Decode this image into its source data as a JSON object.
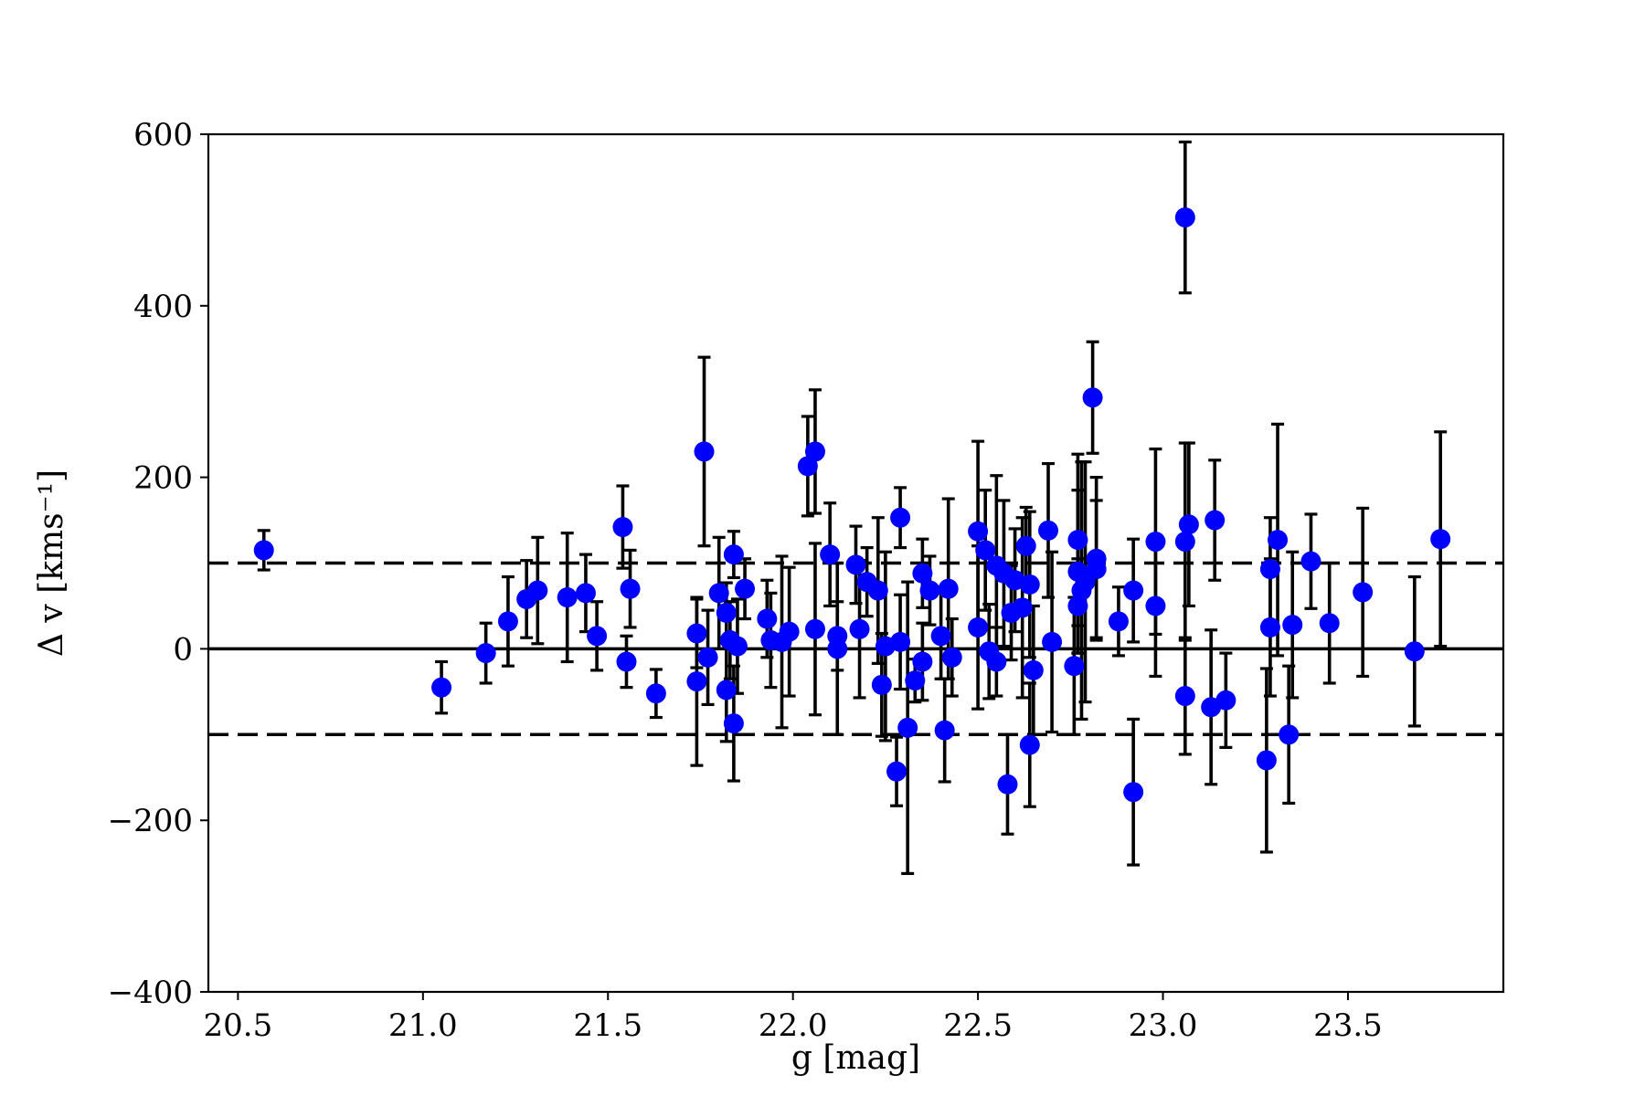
{
  "chart_data": {
    "type": "scatter",
    "title": "",
    "xlabel": "g [mag]",
    "ylabel": "Δ v [kms⁻¹]",
    "xlim": [
      20.42,
      23.92
    ],
    "ylim": [
      -400,
      600
    ],
    "xticks": [
      "20.5",
      "21.0",
      "21.5",
      "22.0",
      "22.5",
      "23.0",
      "23.5"
    ],
    "xtick_values": [
      20.5,
      21.0,
      21.5,
      22.0,
      22.5,
      23.0,
      23.5
    ],
    "yticks": [
      "600",
      "400",
      "200",
      "0",
      "−200",
      "−400"
    ],
    "ytick_values": [
      600,
      400,
      200,
      0,
      -200,
      -400
    ],
    "grid": false,
    "reference_lines": [
      {
        "y": 0,
        "style": "solid"
      },
      {
        "y": 100,
        "style": "dashed"
      },
      {
        "y": -100,
        "style": "dashed"
      }
    ],
    "marker_color": "#0000ff",
    "errorbar_color": "#000000",
    "points": [
      {
        "x": 20.57,
        "y": 115,
        "err": 23
      },
      {
        "x": 21.05,
        "y": -45,
        "err": 30
      },
      {
        "x": 21.17,
        "y": -5,
        "err": 35
      },
      {
        "x": 21.23,
        "y": 32,
        "err": 52
      },
      {
        "x": 21.28,
        "y": 58,
        "err": 45
      },
      {
        "x": 21.31,
        "y": 68,
        "err": 62
      },
      {
        "x": 21.39,
        "y": 60,
        "err": 75
      },
      {
        "x": 21.44,
        "y": 65,
        "err": 45
      },
      {
        "x": 21.47,
        "y": 15,
        "err": 40
      },
      {
        "x": 21.54,
        "y": 142,
        "err": 48
      },
      {
        "x": 21.55,
        "y": -15,
        "err": 30
      },
      {
        "x": 21.56,
        "y": 70,
        "err": 45
      },
      {
        "x": 21.63,
        "y": -52,
        "err": 28
      },
      {
        "x": 21.74,
        "y": 18,
        "err": 40
      },
      {
        "x": 21.74,
        "y": -38,
        "err": 98
      },
      {
        "x": 21.76,
        "y": 230,
        "err": 110
      },
      {
        "x": 21.77,
        "y": -10,
        "err": 55
      },
      {
        "x": 21.8,
        "y": 65,
        "err": 65
      },
      {
        "x": 21.82,
        "y": -48,
        "err": 60
      },
      {
        "x": 21.82,
        "y": 42,
        "err": 35
      },
      {
        "x": 21.83,
        "y": 10,
        "err": 45
      },
      {
        "x": 21.84,
        "y": 110,
        "err": 27
      },
      {
        "x": 21.84,
        "y": -87,
        "err": 67
      },
      {
        "x": 21.85,
        "y": 3,
        "err": 55
      },
      {
        "x": 21.87,
        "y": 70,
        "err": 35
      },
      {
        "x": 21.93,
        "y": 35,
        "err": 45
      },
      {
        "x": 21.94,
        "y": 10,
        "err": 55
      },
      {
        "x": 21.97,
        "y": 8,
        "err": 100
      },
      {
        "x": 21.99,
        "y": 20,
        "err": 75
      },
      {
        "x": 22.04,
        "y": 213,
        "err": 58
      },
      {
        "x": 22.06,
        "y": 230,
        "err": 72
      },
      {
        "x": 22.06,
        "y": 23,
        "err": 100
      },
      {
        "x": 22.1,
        "y": 110,
        "err": 60
      },
      {
        "x": 22.12,
        "y": 15,
        "err": 40
      },
      {
        "x": 22.12,
        "y": 0,
        "err": 100
      },
      {
        "x": 22.17,
        "y": 98,
        "err": 45
      },
      {
        "x": 22.18,
        "y": 23,
        "err": 80
      },
      {
        "x": 22.2,
        "y": 78,
        "err": 40
      },
      {
        "x": 22.23,
        "y": 68,
        "err": 85
      },
      {
        "x": 22.24,
        "y": -42,
        "err": 60
      },
      {
        "x": 22.25,
        "y": 3,
        "err": 110
      },
      {
        "x": 22.28,
        "y": -143,
        "err": 40
      },
      {
        "x": 22.29,
        "y": 153,
        "err": 35
      },
      {
        "x": 22.29,
        "y": 8,
        "err": 55
      },
      {
        "x": 22.31,
        "y": -92,
        "err": 170
      },
      {
        "x": 22.33,
        "y": -37,
        "err": 25
      },
      {
        "x": 22.35,
        "y": -15,
        "err": 45
      },
      {
        "x": 22.35,
        "y": 88,
        "err": 40
      },
      {
        "x": 22.37,
        "y": 68,
        "err": 40
      },
      {
        "x": 22.4,
        "y": 15,
        "err": 50
      },
      {
        "x": 22.41,
        "y": -95,
        "err": 60
      },
      {
        "x": 22.42,
        "y": 70,
        "err": 105
      },
      {
        "x": 22.43,
        "y": -10,
        "err": 45
      },
      {
        "x": 22.5,
        "y": 25,
        "err": 95
      },
      {
        "x": 22.5,
        "y": 137,
        "err": 105
      },
      {
        "x": 22.52,
        "y": 115,
        "err": 70
      },
      {
        "x": 22.53,
        "y": -3,
        "err": 55
      },
      {
        "x": 22.55,
        "y": 97,
        "err": 105
      },
      {
        "x": 22.55,
        "y": -15,
        "err": 40
      },
      {
        "x": 22.57,
        "y": 88,
        "err": 85
      },
      {
        "x": 22.58,
        "y": -158,
        "err": 58
      },
      {
        "x": 22.59,
        "y": 42,
        "err": 55
      },
      {
        "x": 22.6,
        "y": 80,
        "err": 60
      },
      {
        "x": 22.62,
        "y": 48,
        "err": 105
      },
      {
        "x": 22.63,
        "y": 120,
        "err": 45
      },
      {
        "x": 22.64,
        "y": -112,
        "err": 72
      },
      {
        "x": 22.64,
        "y": 75,
        "err": 85
      },
      {
        "x": 22.65,
        "y": -25,
        "err": 75
      },
      {
        "x": 22.69,
        "y": 138,
        "err": 78
      },
      {
        "x": 22.7,
        "y": 8,
        "err": 105
      },
      {
        "x": 22.76,
        "y": -20,
        "err": 80
      },
      {
        "x": 22.77,
        "y": 50,
        "err": 55
      },
      {
        "x": 22.77,
        "y": 127,
        "err": 100
      },
      {
        "x": 22.77,
        "y": 90,
        "err": 95
      },
      {
        "x": 22.78,
        "y": 68,
        "err": 150
      },
      {
        "x": 22.79,
        "y": 78,
        "err": 140
      },
      {
        "x": 22.81,
        "y": 293,
        "err": 65
      },
      {
        "x": 22.82,
        "y": 105,
        "err": 95
      },
      {
        "x": 22.82,
        "y": 93,
        "err": 80
      },
      {
        "x": 22.88,
        "y": 32,
        "err": 40
      },
      {
        "x": 22.92,
        "y": -167,
        "err": 85
      },
      {
        "x": 22.92,
        "y": 68,
        "err": 60
      },
      {
        "x": 22.98,
        "y": 125,
        "err": 108
      },
      {
        "x": 22.98,
        "y": 50,
        "err": 82
      },
      {
        "x": 23.06,
        "y": 503,
        "err": 88
      },
      {
        "x": 23.06,
        "y": -55,
        "err": 68
      },
      {
        "x": 23.06,
        "y": 125,
        "err": 115
      },
      {
        "x": 23.07,
        "y": 145,
        "err": 95
      },
      {
        "x": 23.13,
        "y": -68,
        "err": 90
      },
      {
        "x": 23.14,
        "y": 150,
        "err": 70
      },
      {
        "x": 23.17,
        "y": -60,
        "err": 55
      },
      {
        "x": 23.28,
        "y": -130,
        "err": 107
      },
      {
        "x": 23.29,
        "y": 93,
        "err": 60
      },
      {
        "x": 23.29,
        "y": 25,
        "err": 80
      },
      {
        "x": 23.31,
        "y": 127,
        "err": 135
      },
      {
        "x": 23.34,
        "y": -100,
        "err": 80
      },
      {
        "x": 23.35,
        "y": 28,
        "err": 85
      },
      {
        "x": 23.4,
        "y": 102,
        "err": 55
      },
      {
        "x": 23.45,
        "y": 30,
        "err": 70
      },
      {
        "x": 23.54,
        "y": 66,
        "err": 98
      },
      {
        "x": 23.68,
        "y": -3,
        "err": 87
      },
      {
        "x": 23.75,
        "y": 128,
        "err": 125
      }
    ]
  }
}
